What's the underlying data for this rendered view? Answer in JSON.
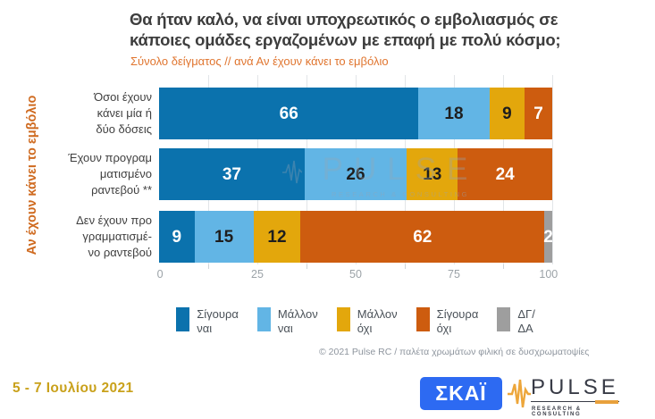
{
  "header": {
    "title": "Θα ήταν καλό, να είναι υποχρεωτικός ο εμβολιασμός σε\nκάποιες ομάδες εργαζομένων με επαφή με πολύ κόσμο;",
    "subtitle": "Σύνολο δείγματος // ανά Αν έχουν κάνει το εμβόλιο"
  },
  "y_axis_label": "Αν έχουν κάνει το εμβόλιο",
  "chart_data": {
    "type": "bar",
    "orientation": "horizontal",
    "stacked": true,
    "title": "Θα ήταν καλό, να είναι υποχρεωτικός ο εμβολιασμός σε κάποιες ομάδες εργαζομένων με επαφή με πολύ κόσμο;",
    "subtitle": "Σύνολο δείγματος // ανά Αν έχουν κάνει το εμβόλιο",
    "ylabel": "Αν έχουν κάνει το εμβόλιο",
    "xlabel": "",
    "xlim": [
      0,
      100
    ],
    "xticks": [
      0,
      25,
      50,
      75,
      100
    ],
    "grid": "vertical minor gridlines every 12.5",
    "legend_position": "bottom",
    "categories": [
      "Όσοι έχουν κάνει μία ή δύο δόσεις",
      "Έχουν προγραμματισμένο ραντεβού **",
      "Δεν έχουν προγραμματισμένο ραντεβού"
    ],
    "category_display": [
      "Όσοι έχουν\nκάνει μία ή\nδύο δόσεις",
      "Έχουν προγραμ\nματισμένο\nραντεβού **",
      "Δεν έχουν προ\nγραμματισμέ-\nνο ραντεβού"
    ],
    "series": [
      {
        "name": "Σίγουρα ναι",
        "color": "#0b72ad",
        "label_color": "#ffffff",
        "values": [
          66,
          37,
          9
        ]
      },
      {
        "name": "Μάλλον ναι",
        "color": "#62b5e5",
        "label_color": "#1e1e1e",
        "values": [
          18,
          26,
          15
        ]
      },
      {
        "name": "Μάλλον όχι",
        "color": "#e3a70c",
        "label_color": "#1e1e1e",
        "values": [
          9,
          13,
          12
        ]
      },
      {
        "name": "Σίγουρα όχι",
        "color": "#cd5c0f",
        "label_color": "#ffffff",
        "values": [
          7,
          24,
          62
        ]
      },
      {
        "name": "ΔΓ/ΔΑ",
        "color": "#9e9e9e",
        "label_color": "#ffffff",
        "values": [
          0,
          0,
          2
        ]
      }
    ]
  },
  "legend": {
    "labels": [
      "Σίγουρα\nναι",
      "Μάλλον\nναι",
      "Μάλλον\nόχι",
      "Σίγουρα\nόχι",
      "ΔΓ/\nΔΑ"
    ]
  },
  "watermark": {
    "label": "PULSE",
    "sublabel": "RESEARCH & CONSULTING"
  },
  "footer": {
    "note": "© 2021 Pulse RC / παλέτα χρωμάτων φιλική σε δυσχρωματοψίες",
    "date_range": "5 - 7 Ιουλίου 2021"
  },
  "logos": {
    "skai_label": "ΣΚΑΪ",
    "pulse_label": "PULSE",
    "pulse_sublabel": "RESEARCH & CONSULTING"
  },
  "palette": {
    "title_gray": "#3d3d3d",
    "accent_orange": "#e0752f",
    "axis_label_orange": "#cf6a1f",
    "date_gold": "#c9a11b",
    "skai_blue": "#2d6af2"
  }
}
